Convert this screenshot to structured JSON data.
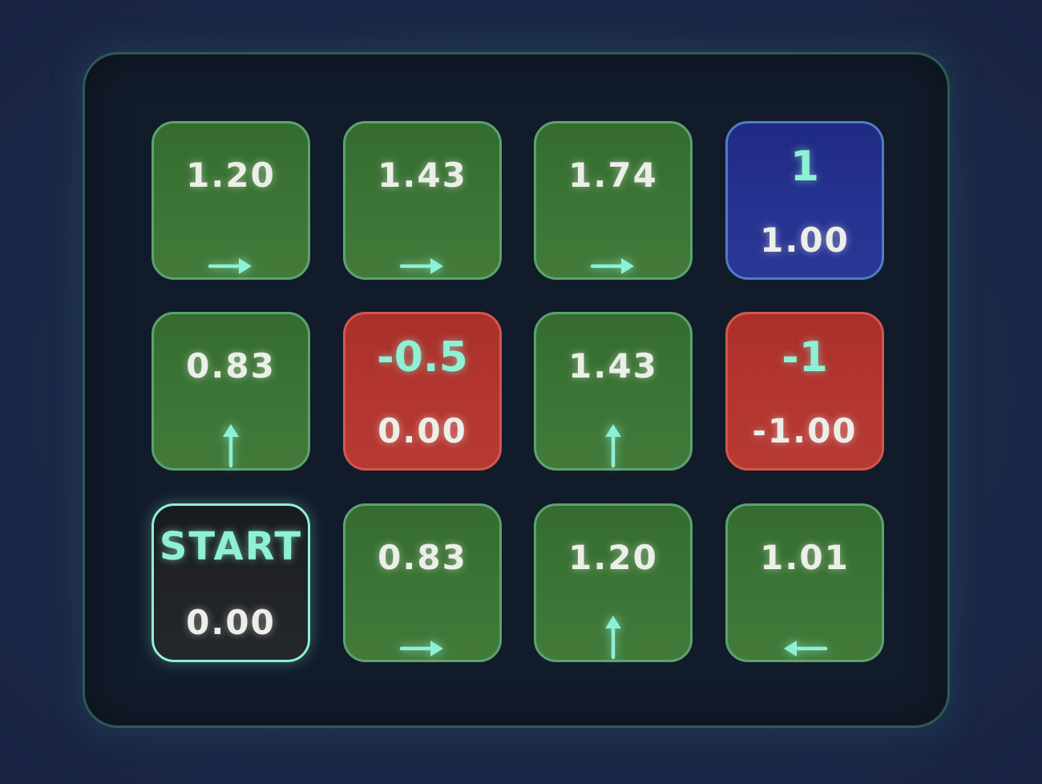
{
  "grid": {
    "rows": [
      [
        {
          "value": "1.20",
          "arrow": "→",
          "arrow_icon": "arrow-right-icon"
        },
        {
          "value": "1.43",
          "arrow": "→",
          "arrow_icon": "arrow-right-icon"
        },
        {
          "value": "1.74",
          "arrow": "→",
          "arrow_icon": "arrow-right-icon"
        },
        {
          "reward": "1",
          "value": "1.00",
          "type": "goal"
        }
      ],
      [
        {
          "value": "0.83",
          "arrow": "↑",
          "arrow_icon": "arrow-up-icon"
        },
        {
          "reward": "-0.5",
          "value": "0.00",
          "type": "penalty"
        },
        {
          "value": "1.43",
          "arrow": "↑",
          "arrow_icon": "arrow-up-icon"
        },
        {
          "reward": "-1",
          "value": "-1.00",
          "type": "penalty"
        }
      ],
      [
        {
          "label": "START",
          "value": "0.00",
          "type": "start"
        },
        {
          "value": "0.83",
          "arrow": "→",
          "arrow_icon": "arrow-right-icon"
        },
        {
          "value": "1.20",
          "arrow": "↑",
          "arrow_icon": "arrow-up-icon"
        },
        {
          "value": "1.01",
          "arrow": "←",
          "arrow_icon": "arrow-left-icon"
        }
      ]
    ]
  },
  "colors": {
    "background": "#1b2847",
    "board": "#121b2a",
    "normal_cell": "#3b7435",
    "penalty_cell": "#b33530",
    "goal_cell": "#26328f",
    "start_cell": "#202226",
    "accent": "#8ef0d4",
    "value_text": "#ecefe8"
  }
}
